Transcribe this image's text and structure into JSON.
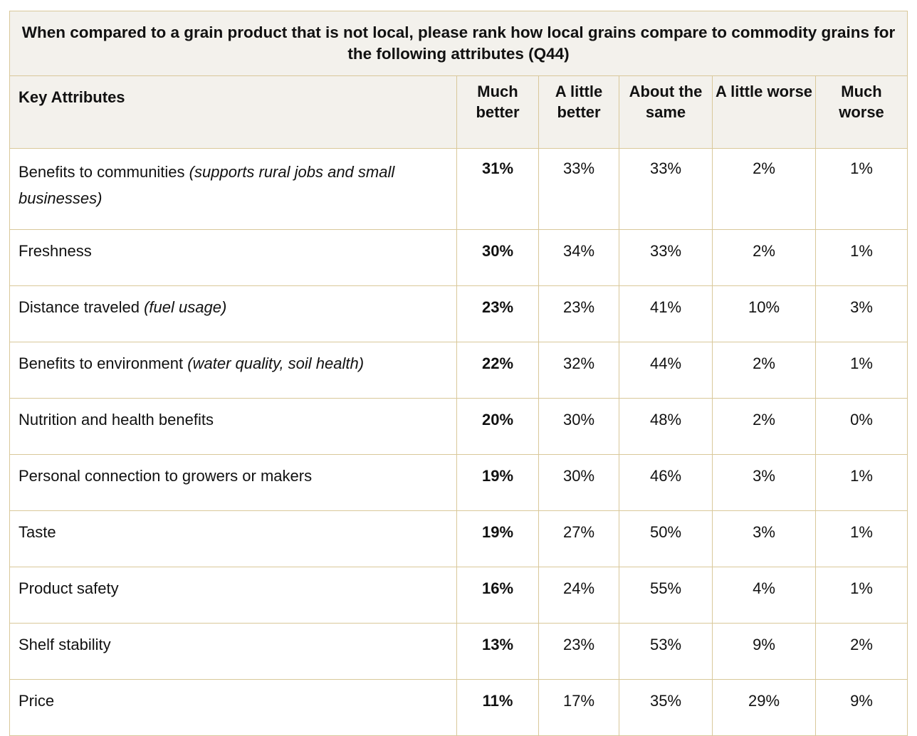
{
  "title": "When compared to a grain product that is not local, please rank how local grains compare to commodity grains for the following attributes (Q44)",
  "headers": {
    "attribute": "Key Attributes",
    "columns": [
      "Much better",
      "A little better",
      "About the same",
      "A little worse",
      "Much worse"
    ]
  },
  "rows": [
    {
      "label": "Benefits to communities",
      "note": "(supports rural jobs and small businesses)",
      "values": [
        "31%",
        "33%",
        "33%",
        "2%",
        "1%"
      ]
    },
    {
      "label": "Freshness",
      "note": "",
      "values": [
        "30%",
        "34%",
        "33%",
        "2%",
        "1%"
      ]
    },
    {
      "label": "Distance traveled",
      "note": "(fuel usage)",
      "values": [
        "23%",
        "23%",
        "41%",
        "10%",
        "3%"
      ]
    },
    {
      "label": "Benefits to environment",
      "note": "(water quality, soil health)",
      "values": [
        "22%",
        "32%",
        "44%",
        "2%",
        "1%"
      ]
    },
    {
      "label": "Nutrition and health benefits",
      "note": "",
      "values": [
        "20%",
        "30%",
        "48%",
        "2%",
        "0%"
      ]
    },
    {
      "label": "Personal connection to growers or makers",
      "note": "",
      "values": [
        "19%",
        "30%",
        "46%",
        "3%",
        "1%"
      ]
    },
    {
      "label": "Taste",
      "note": "",
      "values": [
        "19%",
        "27%",
        "50%",
        "3%",
        "1%"
      ]
    },
    {
      "label": "Product safety",
      "note": "",
      "values": [
        "16%",
        "24%",
        "55%",
        "4%",
        "1%"
      ]
    },
    {
      "label": "Shelf stability",
      "note": "",
      "values": [
        "13%",
        "23%",
        "53%",
        "9%",
        "2%"
      ]
    },
    {
      "label": "Price",
      "note": "",
      "values": [
        "11%",
        "17%",
        "35%",
        "29%",
        "9%"
      ]
    }
  ]
}
